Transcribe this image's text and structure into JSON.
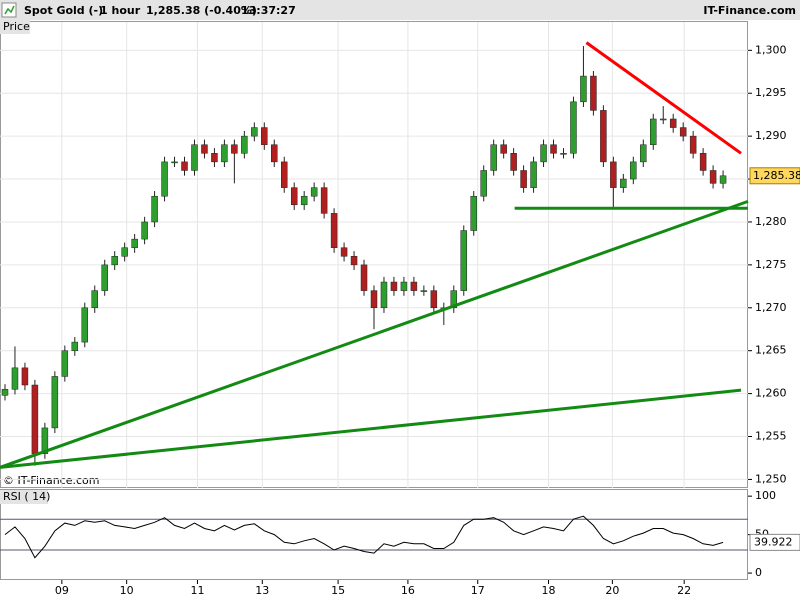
{
  "header": {
    "instrument": "Spot Gold (-)",
    "period": "1 hour",
    "quote": "1,285.38 (-0.40%)",
    "time": "13:37:27",
    "brand": "IT-Finance.com",
    "watermark": "© IT-Finance.com"
  },
  "chart_data": [
    {
      "type": "candlestick",
      "panel_label": "Price",
      "up_color": "#2e9e2e",
      "down_color": "#b02020",
      "xlim": [
        0,
        75
      ],
      "xticks": [
        {
          "value": 6.2,
          "label": "09"
        },
        {
          "value": 12.7,
          "label": "10"
        },
        {
          "value": 19.8,
          "label": "11"
        },
        {
          "value": 26.3,
          "label": "13"
        },
        {
          "value": 33.9,
          "label": "15"
        },
        {
          "value": 40.9,
          "label": "16"
        },
        {
          "value": 47.9,
          "label": "17"
        },
        {
          "value": 55.0,
          "label": "18"
        },
        {
          "value": 61.4,
          "label": "20"
        },
        {
          "value": 68.6,
          "label": "22"
        }
      ],
      "ylim": [
        1249,
        1303.3
      ],
      "yticks": [
        {
          "value": 1250,
          "label": "1,250"
        },
        {
          "value": 1255,
          "label": "1,255"
        },
        {
          "value": 1260,
          "label": "1,260"
        },
        {
          "value": 1265,
          "label": "1,265"
        },
        {
          "value": 1270,
          "label": "1,270"
        },
        {
          "value": 1275,
          "label": "1,275"
        },
        {
          "value": 1280,
          "label": "1,280"
        },
        {
          "value": 1285,
          "label": "1,285"
        },
        {
          "value": 1290,
          "label": "1,290"
        },
        {
          "value": 1295,
          "label": "1,295"
        },
        {
          "value": 1300,
          "label": "1,300"
        }
      ],
      "grid": true,
      "last_price": {
        "value": 1285.38,
        "label": "1,285.38"
      },
      "open": [
        1259.8,
        1260.5,
        1263,
        1261,
        1253,
        1256,
        1262,
        1265,
        1266,
        1270,
        1272,
        1275,
        1276,
        1277,
        1278,
        1280,
        1283,
        1287,
        1287,
        1286,
        1289,
        1288,
        1287,
        1289,
        1288,
        1290,
        1291,
        1289,
        1287,
        1284,
        1282,
        1283,
        1284,
        1281,
        1277,
        1276,
        1275,
        1272,
        1270,
        1273,
        1272,
        1273,
        1272,
        1272,
        1270,
        1270,
        1272,
        1279,
        1283,
        1286,
        1289,
        1288,
        1286,
        1284,
        1287,
        1289,
        1288,
        1288,
        1294,
        1297,
        1293,
        1287,
        1284,
        1285,
        1287,
        1289,
        1292,
        1292,
        1291,
        1290,
        1288,
        1286,
        1284.5
      ],
      "high": [
        1261.1,
        1265.5,
        1263.6,
        1261.6,
        1256.6,
        1262.6,
        1265.6,
        1266.6,
        1270.6,
        1272.6,
        1275.6,
        1276.6,
        1277.6,
        1278.6,
        1280.6,
        1283.6,
        1287.6,
        1287.6,
        1287.6,
        1289.6,
        1289.6,
        1288.6,
        1289.6,
        1289.6,
        1290.6,
        1291.6,
        1291.6,
        1289.6,
        1287.6,
        1284.6,
        1283.6,
        1284.6,
        1284.6,
        1281.6,
        1277.6,
        1276.6,
        1275.6,
        1272.6,
        1273.6,
        1273.6,
        1273.6,
        1273.6,
        1272.6,
        1272.6,
        1270.6,
        1272.6,
        1279.6,
        1283.6,
        1286.6,
        1289.6,
        1289.6,
        1288.6,
        1286.6,
        1287.6,
        1289.6,
        1289.6,
        1288.6,
        1294.6,
        1300.5,
        1297.6,
        1293.6,
        1287.6,
        1285.6,
        1287.6,
        1289.6,
        1292.6,
        1293.5,
        1292.6,
        1291.6,
        1290.6,
        1288.6,
        1286.6,
        1286
      ],
      "low": [
        1259.2,
        1259.9,
        1260.4,
        1251.6,
        1252.4,
        1255.4,
        1261.4,
        1264.4,
        1265.4,
        1269.4,
        1271.4,
        1274.4,
        1275.4,
        1276.4,
        1277.4,
        1279.4,
        1282.4,
        1286.4,
        1285.4,
        1285.4,
        1287.4,
        1286.4,
        1286.4,
        1284.5,
        1287.4,
        1289.4,
        1288.4,
        1286.4,
        1283.4,
        1281.4,
        1281.4,
        1282.4,
        1280.4,
        1276.4,
        1275.4,
        1274.4,
        1271.4,
        1267.5,
        1269.4,
        1271.4,
        1271.4,
        1271.4,
        1271.4,
        1269.4,
        1268,
        1269.4,
        1271.4,
        1278.4,
        1282.4,
        1285.4,
        1287.4,
        1285.4,
        1283.4,
        1283.4,
        1286.4,
        1287.4,
        1287.4,
        1287.4,
        1293.4,
        1292.4,
        1286.4,
        1281.5,
        1283.4,
        1284.4,
        1286.4,
        1288.4,
        1291.4,
        1290.4,
        1289.4,
        1287.4,
        1285.4,
        1283.9,
        1283.9
      ],
      "close": [
        1260.5,
        1263,
        1261,
        1253,
        1256,
        1262,
        1265,
        1266,
        1270,
        1272,
        1275,
        1276,
        1277,
        1278,
        1280,
        1283,
        1287,
        1287,
        1286,
        1289,
        1288,
        1287,
        1289,
        1288,
        1290,
        1291,
        1289,
        1287,
        1284,
        1282,
        1283,
        1284,
        1281,
        1277,
        1276,
        1275,
        1272,
        1270,
        1273,
        1272,
        1273,
        1272,
        1272,
        1270,
        1270,
        1272,
        1279,
        1283,
        1286,
        1289,
        1288,
        1286,
        1284,
        1287,
        1289,
        1288,
        1288,
        1294,
        1297,
        1293,
        1287,
        1284,
        1285,
        1287,
        1289,
        1292,
        1292,
        1291,
        1290,
        1288,
        1286,
        1284.5,
        1285.38
      ],
      "lines": [
        {
          "color": "#ff0000",
          "x": [
            58.8,
            74.3
          ],
          "y": [
            1300.9,
            1288.0
          ]
        },
        {
          "color": "#138a13",
          "x": [
            0,
            75
          ],
          "y": [
            1251.4,
            1282.4
          ]
        },
        {
          "color": "#138a13",
          "x": [
            0,
            74.3
          ],
          "y": [
            1251.4,
            1260.4
          ]
        },
        {
          "color": "#138a13",
          "x": [
            51.6,
            75
          ],
          "y": [
            1281.6,
            1281.6
          ]
        }
      ]
    },
    {
      "type": "line",
      "panel_label": "RSI ( 14)",
      "color": "#000000",
      "xlim": [
        0,
        75
      ],
      "ylim": [
        -9,
        108
      ],
      "yticks": [
        0,
        50,
        100
      ],
      "levels": [
        30,
        70
      ],
      "level_color": "#555577",
      "values": [
        50,
        60,
        45,
        20,
        35,
        55,
        65,
        62,
        68,
        66,
        68,
        62,
        60,
        58,
        62,
        66,
        72,
        62,
        58,
        65,
        58,
        55,
        62,
        56,
        62,
        64,
        55,
        50,
        40,
        38,
        42,
        45,
        38,
        30,
        35,
        32,
        28,
        26,
        38,
        35,
        40,
        38,
        38,
        32,
        32,
        40,
        62,
        70,
        70,
        72,
        66,
        55,
        50,
        55,
        60,
        58,
        55,
        70,
        74,
        62,
        45,
        38,
        42,
        48,
        52,
        58,
        58,
        52,
        50,
        45,
        38,
        36,
        39.922
      ]
    }
  ]
}
